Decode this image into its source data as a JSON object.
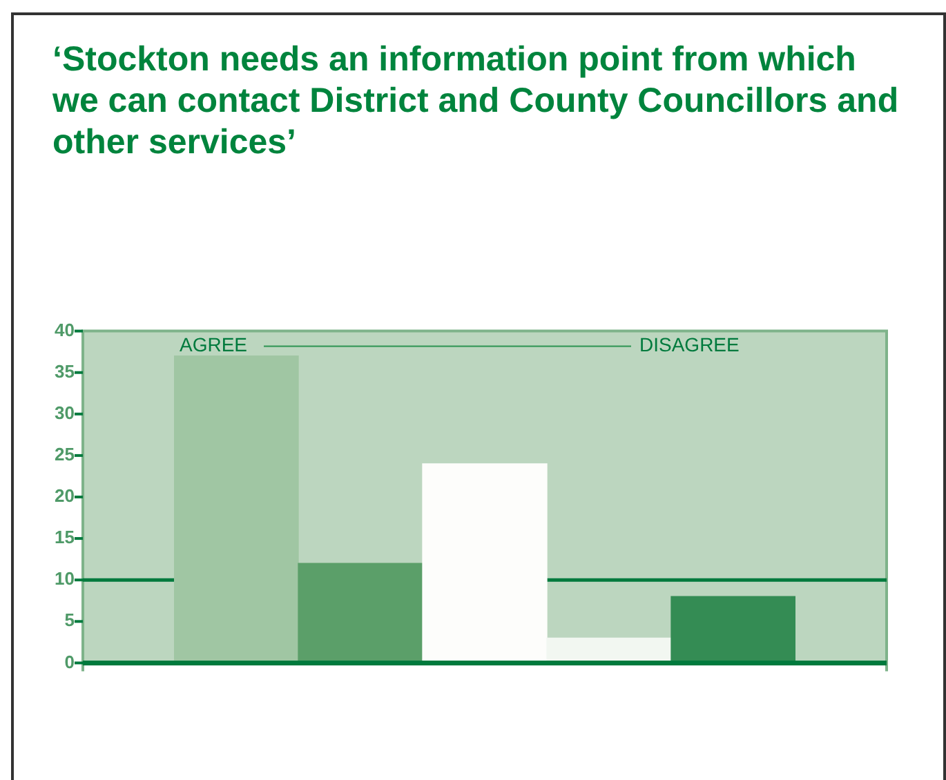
{
  "chart_data": {
    "type": "bar",
    "title": "‘Stockton needs an information point from which we can contact District and County Councillors and other services’",
    "categories": [
      null,
      null,
      null,
      null,
      null
    ],
    "values": [
      37,
      12,
      24,
      3,
      8
    ],
    "colors": [
      "#a0c6a3",
      "#5b9f69",
      "#fdfdfb",
      "#f2f7f1",
      "#348c54"
    ],
    "ylim": [
      0,
      40
    ],
    "yticks": [
      0,
      5,
      10,
      15,
      20,
      25,
      30,
      35,
      40
    ],
    "ref_lines": [
      {
        "axis": "y",
        "value": 10,
        "color": "#007a3d"
      }
    ],
    "annotations": [
      "AGREE",
      "DISAGREE"
    ],
    "grid": false,
    "legend": false
  }
}
